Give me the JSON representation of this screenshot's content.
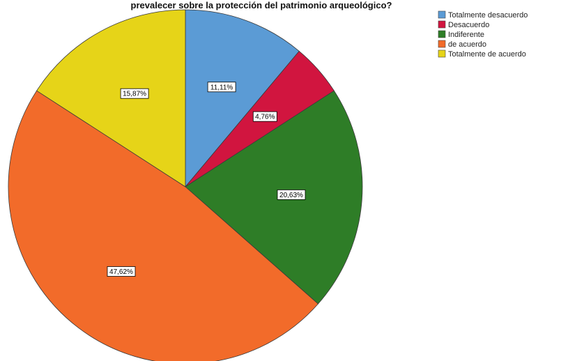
{
  "chart_data": {
    "type": "pie",
    "title": "prevalecer sobre la protección del patrimonio arqueológico?",
    "slices": [
      {
        "name": "Totalmente desacuerdo",
        "value": 11.11,
        "label": "11,11%",
        "color": "#5b9bd5"
      },
      {
        "name": "Desacuerdo",
        "value": 4.76,
        "label": "4,76%",
        "color": "#d1153f"
      },
      {
        "name": "Indiferente",
        "value": 20.63,
        "label": "20,63%",
        "color": "#2e7d27"
      },
      {
        "name": "de acuerdo",
        "value": 47.62,
        "label": "47,62%",
        "color": "#f26b2a"
      },
      {
        "name": "Totalmente de acuerdo",
        "value": 15.87,
        "label": "15,87%",
        "color": "#e6d418"
      }
    ],
    "start_angle_deg": 0,
    "direction": "clockwise",
    "legend_position": "top-right"
  }
}
